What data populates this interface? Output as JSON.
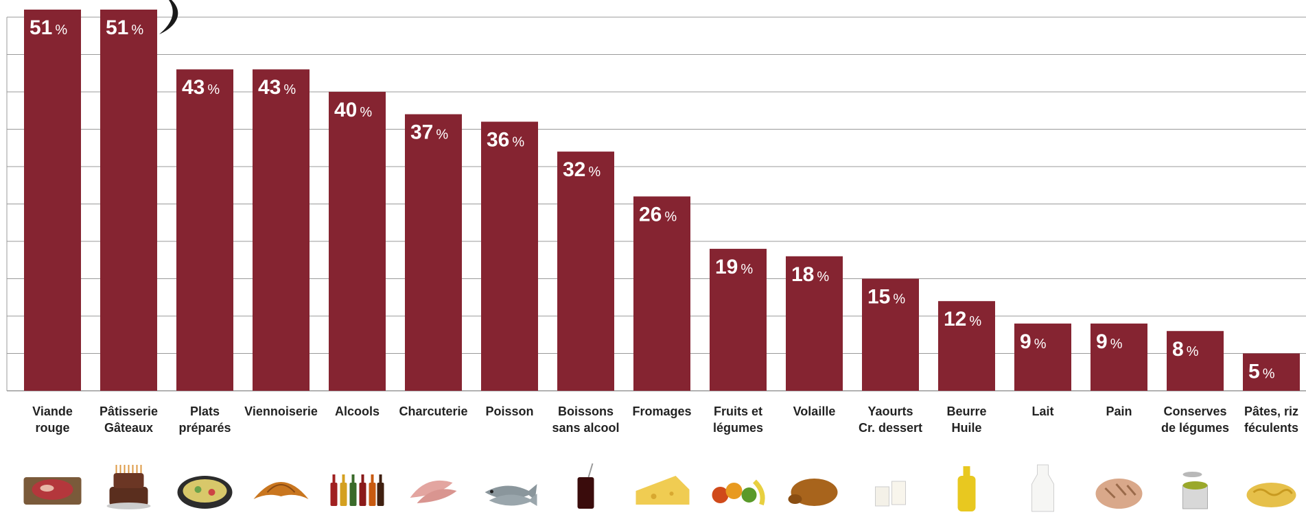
{
  "chart_data": {
    "type": "bar",
    "categories": [
      [
        "Viande",
        "rouge"
      ],
      [
        "Pâtisserie",
        "Gâteaux"
      ],
      [
        "Plats",
        "préparés"
      ],
      [
        "Viennoiserie"
      ],
      [
        "Alcools"
      ],
      [
        "Charcuterie"
      ],
      [
        "Poisson"
      ],
      [
        "Boissons",
        "sans alcool"
      ],
      [
        "Fromages"
      ],
      [
        "Fruits et",
        "légumes"
      ],
      [
        "Volaille"
      ],
      [
        "Yaourts",
        "Cr. dessert"
      ],
      [
        "Beurre",
        "Huile"
      ],
      [
        "Lait"
      ],
      [
        "Pain"
      ],
      [
        "Conserves",
        "de légumes"
      ],
      [
        "Pâtes, riz",
        "féculents"
      ]
    ],
    "values": [
      51,
      51,
      43,
      43,
      40,
      37,
      36,
      32,
      26,
      19,
      18,
      15,
      12,
      9,
      9,
      8,
      5
    ],
    "value_suffix": "%",
    "icons": [
      "steak-icon",
      "cake-icon",
      "prepared-dish-icon",
      "croissant-icon",
      "alcohol-bottles-icon",
      "ham-slices-icon",
      "fish-icon",
      "soda-glass-icon",
      "cheese-icon",
      "fruits-vegetables-icon",
      "roast-chicken-icon",
      "yogurt-icon",
      "oil-bottle-icon",
      "milk-bottle-icon",
      "bread-icon",
      "canned-peas-icon",
      "pasta-icon"
    ],
    "ylim": [
      0,
      51
    ],
    "grid": true,
    "colors": {
      "bar": "#852431",
      "grid": "#999999",
      "label": "#ffffff",
      "category": "#222222"
    }
  }
}
